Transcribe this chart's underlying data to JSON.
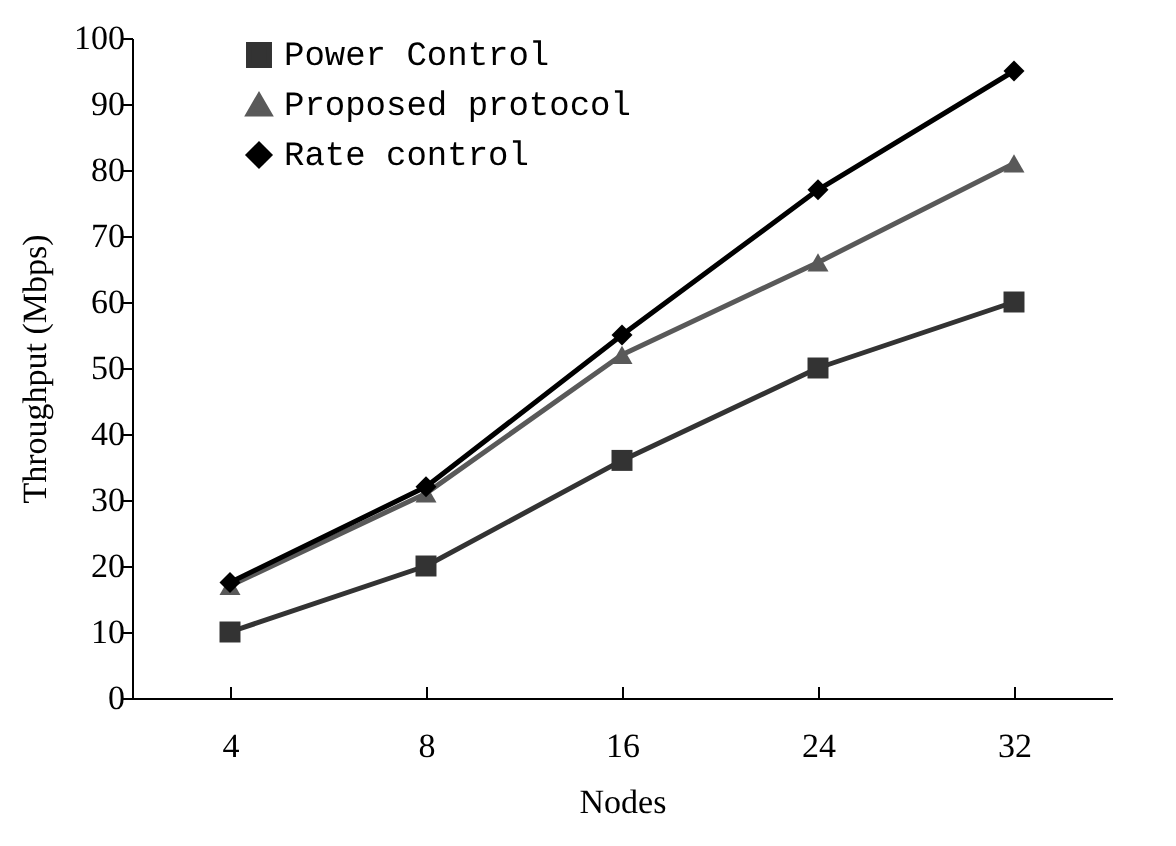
{
  "chart_data": {
    "type": "line",
    "xlabel": "Nodes",
    "ylabel": "Throughput (Mbps)",
    "categories": [
      "4",
      "8",
      "16",
      "24",
      "32"
    ],
    "series": [
      {
        "name": "Power Control",
        "color": "#333333",
        "marker": "square",
        "values": [
          10,
          20,
          36,
          50,
          60
        ]
      },
      {
        "name": "Proposed protocol",
        "color": "#595959",
        "marker": "triangle",
        "values": [
          17,
          31,
          52,
          66,
          81
        ]
      },
      {
        "name": "Rate control",
        "color": "#000000",
        "marker": "diamond",
        "values": [
          17.5,
          32,
          55,
          77,
          95
        ]
      }
    ],
    "ylim": [
      0,
      100
    ],
    "yticks": [
      0,
      10,
      20,
      30,
      40,
      50,
      60,
      70,
      80,
      90,
      100
    ],
    "grid": false,
    "legend": "top left",
    "line_style": "solid"
  }
}
